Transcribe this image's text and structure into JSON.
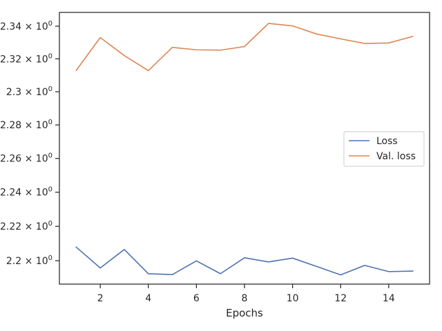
{
  "chart_data": {
    "type": "line",
    "title": "",
    "xlabel": "Epochs",
    "ylabel": "",
    "y_scale": "log",
    "xlim": [
      0.3,
      15.7
    ],
    "ylim": [
      2.1865,
      2.3485
    ],
    "x_ticks": [
      2,
      4,
      6,
      8,
      10,
      12,
      14
    ],
    "y_ticks": [
      {
        "value": 2.2,
        "mantissa": "2.2"
      },
      {
        "value": 2.22,
        "mantissa": "2.22"
      },
      {
        "value": 2.24,
        "mantissa": "2.24"
      },
      {
        "value": 2.26,
        "mantissa": "2.26"
      },
      {
        "value": 2.28,
        "mantissa": "2.28"
      },
      {
        "value": 2.3,
        "mantissa": "2.3"
      },
      {
        "value": 2.32,
        "mantissa": "2.32"
      },
      {
        "value": 2.34,
        "mantissa": "2.34"
      }
    ],
    "tick_multiplier": "× 10",
    "tick_exponent": "0",
    "grid": false,
    "legend_position": "center-right",
    "x": [
      1,
      2,
      3,
      4,
      5,
      6,
      7,
      8,
      9,
      10,
      11,
      12,
      13,
      14,
      15
    ],
    "series": [
      {
        "name": "Loss",
        "color": "#4c72b0",
        "values": [
          2.2079,
          2.1958,
          2.2065,
          2.1925,
          2.192,
          2.1999,
          2.1925,
          2.2017,
          2.1993,
          2.2015,
          2.1967,
          2.1918,
          2.1973,
          2.1937,
          2.194
        ]
      },
      {
        "name": "Val. loss",
        "color": "#dd8452",
        "values": [
          2.313,
          2.333,
          2.322,
          2.3128,
          2.327,
          2.3255,
          2.3253,
          2.3275,
          2.3417,
          2.3402,
          2.3352,
          2.3322,
          2.3294,
          2.3297,
          2.3337
        ]
      }
    ]
  }
}
